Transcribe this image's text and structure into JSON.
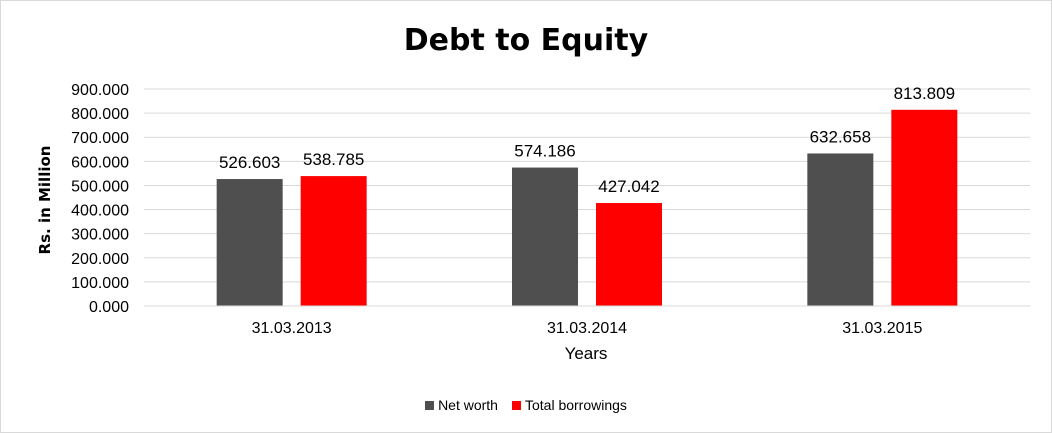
{
  "chart_data": {
    "type": "bar",
    "title": "Debt to Equity",
    "xlabel": "Years",
    "ylabel": "Rs. in Million",
    "categories": [
      "31.03.2013",
      "31.03.2014",
      "31.03.2015"
    ],
    "series": [
      {
        "name": "Net worth",
        "color": "#4f4f4f",
        "values": [
          526.603,
          574.186,
          632.658
        ]
      },
      {
        "name": "Total borrowings",
        "color": "#ff0000",
        "values": [
          538.785,
          427.042,
          813.809
        ]
      }
    ],
    "ylim": [
      0,
      900
    ],
    "yticks": [
      "0.000",
      "100.000",
      "200.000",
      "300.000",
      "400.000",
      "500.000",
      "600.000",
      "700.000",
      "800.000",
      "900.000"
    ],
    "data_labels": [
      [
        "526.603",
        "574.186",
        "632.658"
      ],
      [
        "538.785",
        "427.042",
        "813.809"
      ]
    ],
    "grid": true,
    "legend_position": "bottom"
  }
}
